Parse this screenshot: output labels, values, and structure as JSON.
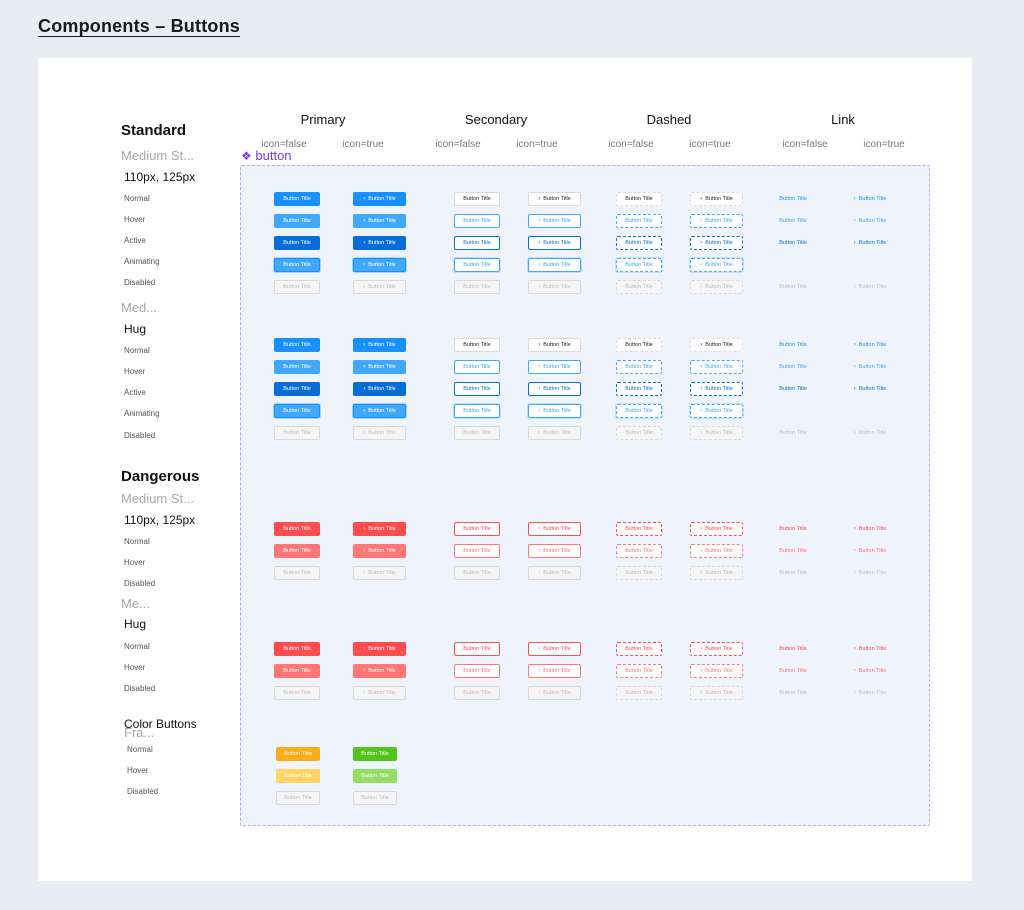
{
  "page_title": "Components – Buttons",
  "component_name": "button",
  "columns": [
    "Primary",
    "Secondary",
    "Dashed",
    "Link"
  ],
  "icon_variants": [
    "icon=false",
    "icon=true"
  ],
  "button_label": "Button Title",
  "sections": {
    "standard": {
      "title": "Standard",
      "subtitle": "Medium St...",
      "size": "110px, 125px"
    },
    "standard_hug": {
      "subtitle": "Med...",
      "size": "Hug"
    },
    "dangerous": {
      "title": "Dangerous",
      "subtitle": "Medium St...",
      "size": "110px, 125px"
    },
    "dangerous_hug": {
      "subtitle": "Me...",
      "size": "Hug"
    },
    "color": {
      "title": "Color Buttons",
      "subtitle": "Fra..."
    }
  },
  "states": {
    "normal": "Normal",
    "hover": "Hover",
    "active": "Active",
    "animating": "Animating",
    "disabled": "Disabled"
  },
  "colors": {
    "primary": "#1890ff",
    "primary_hover": "#40a9ff",
    "primary_active": "#096dd9",
    "danger": "#ff4d4f",
    "danger_hover": "#ff7875",
    "gold": "#faad14",
    "green": "#52c41a",
    "component_purple": "#7c3aed",
    "frame_bg": "#eef3fc"
  },
  "icons": {
    "chevron": "chevron-right-icon",
    "component": "component-diamond-icon"
  }
}
